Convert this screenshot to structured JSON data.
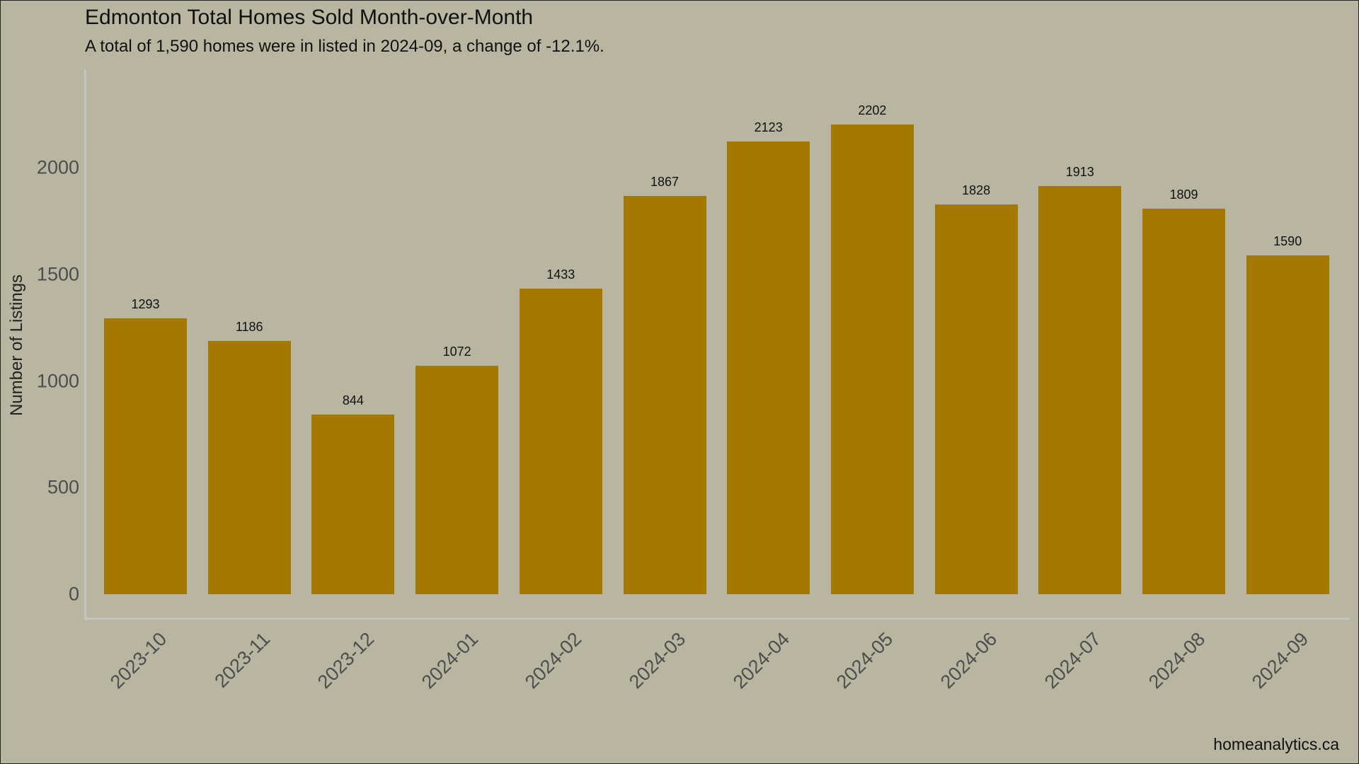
{
  "header": {
    "title": "Edmonton Total Homes Sold Month-over-Month",
    "subtitle": "A total of 1,590 homes were in listed in 2024-09, a change of -12.1%."
  },
  "caption": "homeanalytics.ca",
  "colors": {
    "background": "#b8b6a0",
    "bar": "#a57800",
    "axis_line": "#c5c5c0",
    "tick_text": "#4d4d4d"
  },
  "chart_data": {
    "type": "bar",
    "title": "Edmonton Total Homes Sold Month-over-Month",
    "subtitle": "A total of 1,590 homes were in listed in 2024-09, a change of -12.1%.",
    "xlabel": "",
    "ylabel": "Number of Listings",
    "categories": [
      "2023-10",
      "2023-11",
      "2023-12",
      "2024-01",
      "2024-02",
      "2024-03",
      "2024-04",
      "2024-05",
      "2024-06",
      "2024-07",
      "2024-08",
      "2024-09"
    ],
    "values": [
      1293,
      1186,
      844,
      1072,
      1433,
      1867,
      2123,
      2202,
      1828,
      1913,
      1809,
      1590
    ],
    "yticks": [
      0,
      500,
      1000,
      1500,
      2000
    ],
    "ylim": [
      0,
      2300
    ],
    "grid": false,
    "legend": null,
    "data_labels": true,
    "caption": "homeanalytics.ca"
  }
}
